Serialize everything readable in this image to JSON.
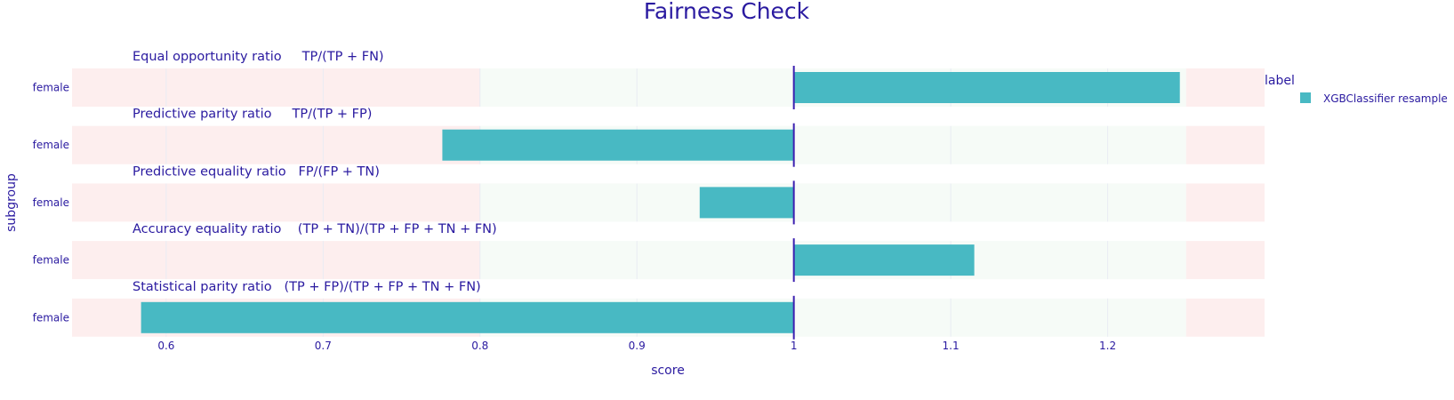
{
  "chart_data": {
    "type": "bar",
    "orientation": "horizontal",
    "title": "Fairness Check",
    "xlabel": "score",
    "ylabel": "subgroup",
    "xlim": [
      0.54,
      1.3
    ],
    "x_ticks": [
      "0.6",
      "0.7",
      "0.8",
      "0.9",
      "1",
      "1.1",
      "1.2"
    ],
    "baseline": 1,
    "fair_band": [
      0.8,
      1.25
    ],
    "legend_title": "label",
    "legend_position": "top-right",
    "series": [
      {
        "name": "XGBClassifier resample",
        "color": "#48b9c3"
      }
    ],
    "facets": [
      {
        "title": "Equal opportunity ratio     TP/(TP + FN)",
        "category": "female",
        "value": 1.246
      },
      {
        "title": "Predictive parity ratio     TP/(TP + FP)",
        "category": "female",
        "value": 0.776
      },
      {
        "title": "Predictive equality ratio   FP/(FP + TN)",
        "category": "female",
        "value": 0.94
      },
      {
        "title": "Accuracy equality ratio    (TP + TN)/(TP + FP + TN + FN)",
        "category": "female",
        "value": 1.115
      },
      {
        "title": "Statistical parity ratio   (TP + FP)/(TP + FP + TN + FN)",
        "category": "female",
        "value": 0.584
      }
    ],
    "colors": {
      "unfair_band": "#fdeeee",
      "fair_band": "#f6fbf7",
      "baseline": "#3b1fb0",
      "text": "#2a1aa0"
    }
  }
}
